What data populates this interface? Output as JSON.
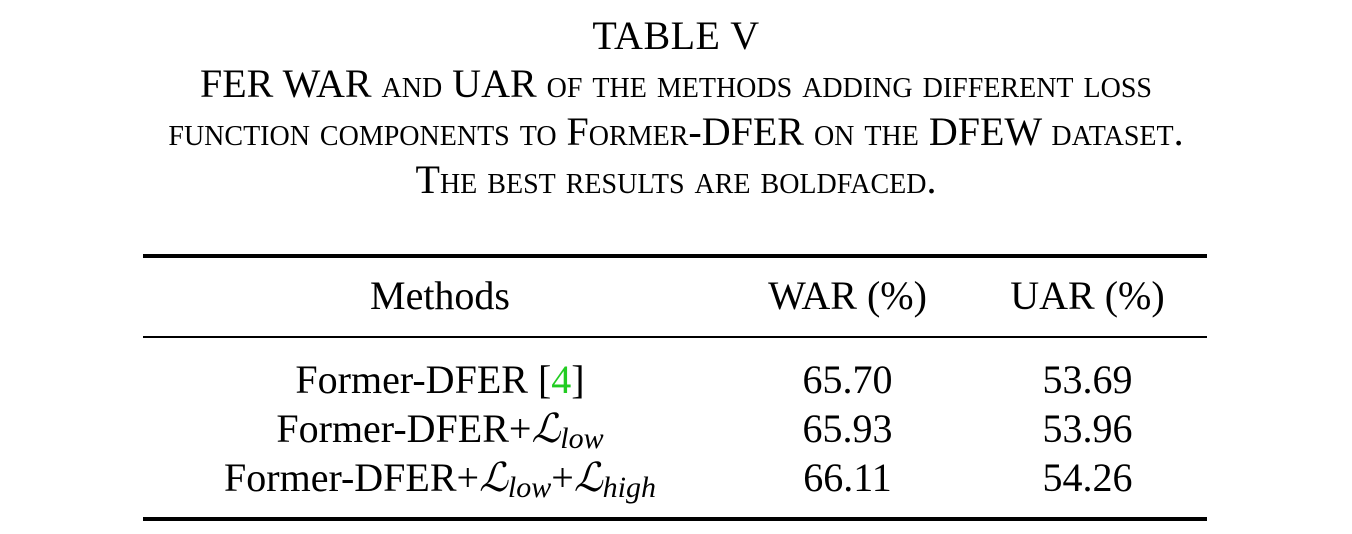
{
  "caption": {
    "label": "TABLE V",
    "lines": [
      "FER WAR and UAR of the methods adding different loss",
      "function components to Former-DFER on the DFEW dataset.",
      "The best results are boldfaced."
    ]
  },
  "table": {
    "headers": {
      "methods": "Methods",
      "war": "WAR (%)",
      "uar": "UAR (%)"
    },
    "rows": [
      {
        "method_base": "Former-DFER",
        "citation": "4",
        "war": "65.70",
        "uar": "53.69"
      },
      {
        "method_base": "Former-DFER+",
        "loss_symbol": "ℒ",
        "loss_sub": "low",
        "war": "65.93",
        "uar": "53.96"
      },
      {
        "method_base": "Former-DFER+",
        "loss_symbol_1": "ℒ",
        "loss_sub_1": "low",
        "plus": "+",
        "loss_symbol_2": "ℒ",
        "loss_sub_2": "high",
        "war": "66.11",
        "uar": "54.26"
      }
    ]
  },
  "colors": {
    "citation": "#22cc22"
  }
}
